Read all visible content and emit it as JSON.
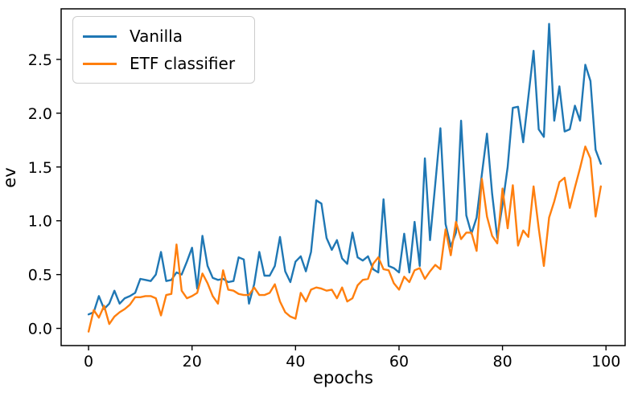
{
  "figure": {
    "xlabel": "epochs",
    "ylabel": "ev"
  },
  "chart_data": {
    "type": "line",
    "title": "",
    "xlabel": "epochs",
    "ylabel": "ev",
    "x_description": "epoch index 0..99, step 1",
    "xlim": [
      -5.3,
      103.7
    ],
    "ylim": [
      -0.16,
      2.97
    ],
    "grid": false,
    "legend_position": "upper left",
    "xticks": {
      "values": [
        0,
        20,
        40,
        60,
        80,
        100
      ],
      "labels": [
        "0",
        "20",
        "40",
        "60",
        "80",
        "100"
      ]
    },
    "yticks": {
      "values": [
        0.0,
        0.5,
        1.0,
        1.5,
        2.0,
        2.5
      ],
      "labels": [
        "0.0",
        "0.5",
        "1.0",
        "1.5",
        "2.0",
        "2.5"
      ]
    },
    "series": [
      {
        "name": "Vanilla",
        "color": "#1f77b4",
        "values": [
          0.13,
          0.15,
          0.3,
          0.18,
          0.23,
          0.35,
          0.23,
          0.28,
          0.3,
          0.33,
          0.46,
          0.45,
          0.44,
          0.5,
          0.71,
          0.44,
          0.45,
          0.52,
          0.5,
          0.62,
          0.75,
          0.37,
          0.86,
          0.58,
          0.47,
          0.45,
          0.46,
          0.43,
          0.44,
          0.66,
          0.64,
          0.23,
          0.41,
          0.71,
          0.49,
          0.49,
          0.58,
          0.85,
          0.53,
          0.43,
          0.62,
          0.67,
          0.53,
          0.71,
          1.19,
          1.16,
          0.84,
          0.73,
          0.82,
          0.65,
          0.6,
          0.89,
          0.66,
          0.63,
          0.67,
          0.55,
          0.52,
          1.2,
          0.58,
          0.56,
          0.52,
          0.88,
          0.52,
          0.99,
          0.58,
          1.58,
          0.82,
          1.34,
          1.86,
          0.97,
          0.76,
          0.89,
          1.93,
          1.05,
          0.88,
          1.03,
          1.43,
          1.81,
          1.25,
          0.84,
          1.15,
          1.5,
          2.05,
          2.06,
          1.73,
          2.15,
          2.58,
          1.85,
          1.78,
          2.83,
          1.93,
          2.25,
          1.83,
          1.85,
          2.07,
          1.93,
          2.45,
          2.3,
          1.66,
          1.53
        ]
      },
      {
        "name": "ETF classifier",
        "color": "#ff7f0e",
        "values": [
          -0.03,
          0.17,
          0.1,
          0.21,
          0.04,
          0.11,
          0.15,
          0.18,
          0.22,
          0.29,
          0.29,
          0.3,
          0.3,
          0.28,
          0.12,
          0.31,
          0.32,
          0.78,
          0.35,
          0.28,
          0.3,
          0.33,
          0.51,
          0.42,
          0.3,
          0.23,
          0.54,
          0.36,
          0.35,
          0.32,
          0.31,
          0.31,
          0.38,
          0.31,
          0.31,
          0.33,
          0.41,
          0.25,
          0.15,
          0.11,
          0.09,
          0.33,
          0.25,
          0.36,
          0.38,
          0.37,
          0.35,
          0.36,
          0.28,
          0.38,
          0.25,
          0.28,
          0.4,
          0.45,
          0.46,
          0.6,
          0.66,
          0.55,
          0.54,
          0.42,
          0.36,
          0.48,
          0.43,
          0.54,
          0.56,
          0.46,
          0.53,
          0.59,
          0.55,
          0.92,
          0.68,
          0.99,
          0.83,
          0.89,
          0.89,
          0.72,
          1.39,
          1.04,
          0.86,
          0.79,
          1.3,
          0.93,
          1.33,
          0.77,
          0.91,
          0.85,
          1.32,
          0.93,
          0.58,
          1.03,
          1.18,
          1.36,
          1.4,
          1.12,
          1.31,
          1.49,
          1.69,
          1.58,
          1.04,
          1.32
        ]
      }
    ]
  }
}
